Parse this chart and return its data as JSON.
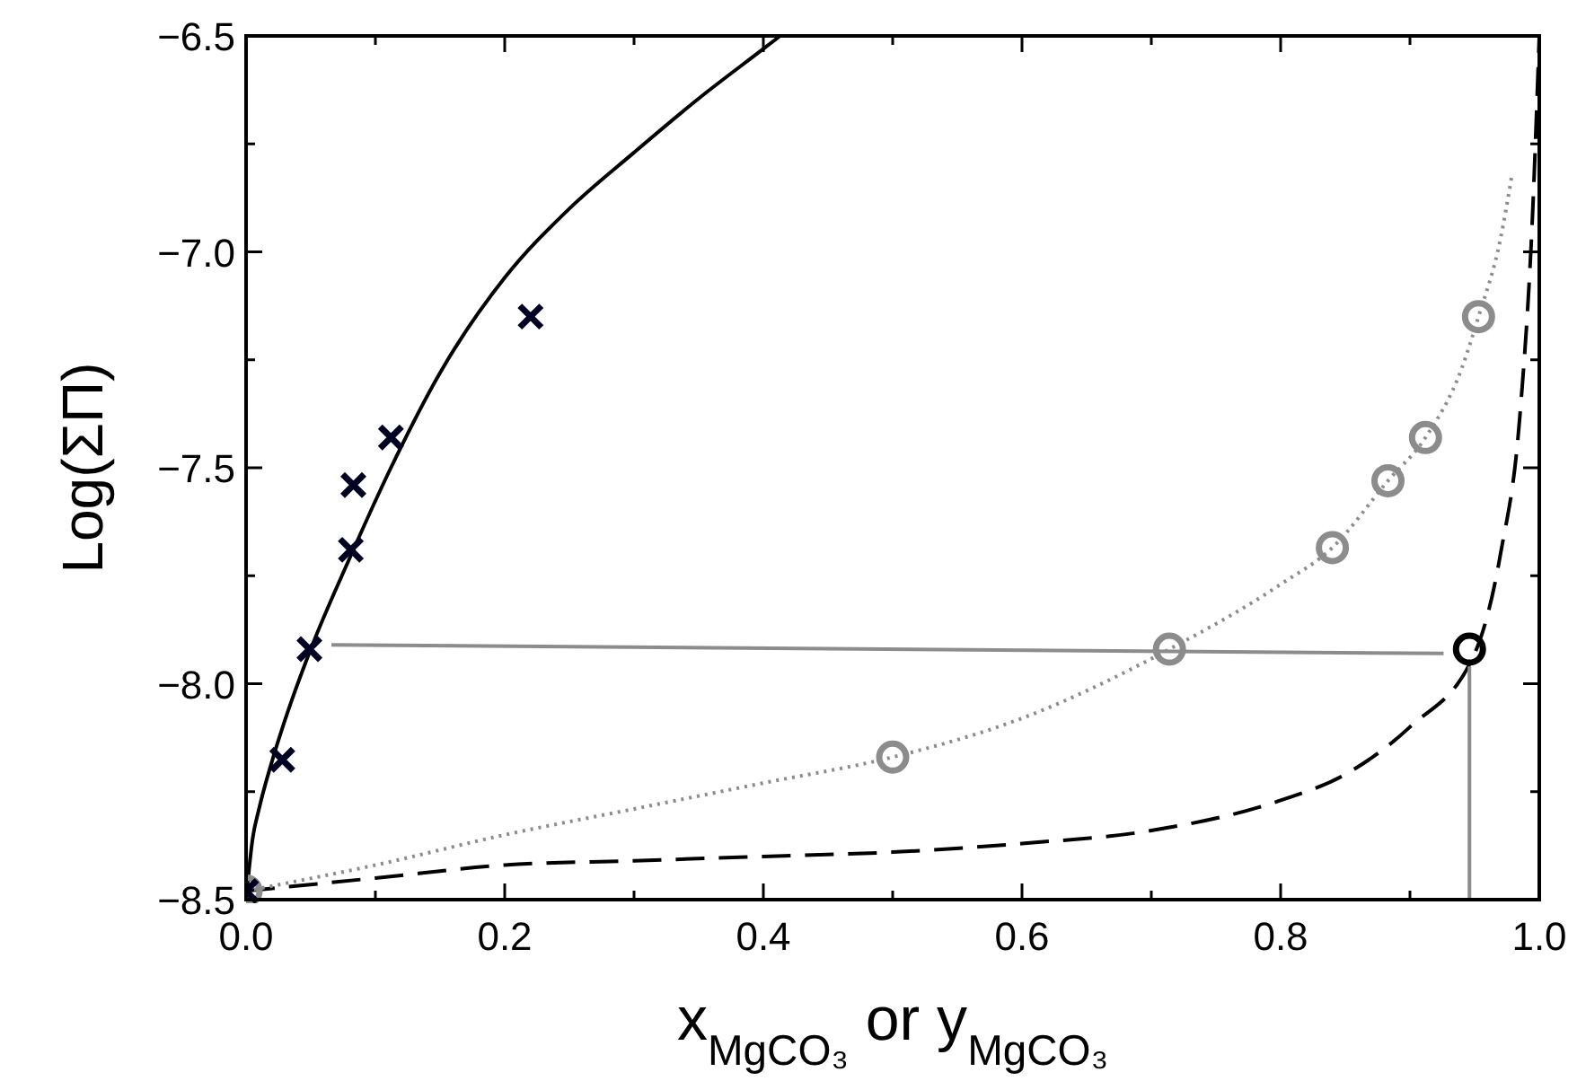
{
  "chart_data": {
    "type": "line",
    "xlabel": "x$_{MgCO₃}$ or y$_{MgCO₃}$",
    "ylabel": "Log(ΣΠ)",
    "xlim": [
      0,
      1
    ],
    "ylim": [
      -8.5,
      -6.5
    ],
    "xticks": [
      {
        "value": 0,
        "label": "0.0"
      },
      {
        "value": 0.1,
        "label": null
      },
      {
        "value": 0.2,
        "label": "0.2"
      },
      {
        "value": 0.3,
        "label": null
      },
      {
        "value": 0.4,
        "label": "0.4"
      },
      {
        "value": 0.5,
        "label": null
      },
      {
        "value": 0.6,
        "label": "0.6"
      },
      {
        "value": 0.7,
        "label": null
      },
      {
        "value": 0.8,
        "label": "0.8"
      },
      {
        "value": 0.9,
        "label": null
      },
      {
        "value": 1,
        "label": "1.0"
      }
    ],
    "yticks": [
      {
        "value": -8.5,
        "label": "−8.5"
      },
      {
        "value": -8.25,
        "label": null
      },
      {
        "value": -8,
        "label": "−8.0"
      },
      {
        "value": -7.75,
        "label": null
      },
      {
        "value": -7.5,
        "label": "−7.5"
      },
      {
        "value": -7.25,
        "label": null
      },
      {
        "value": -7,
        "label": "−7.0"
      },
      {
        "value": -6.75,
        "label": null
      },
      {
        "value": -6.5,
        "label": "−6.5"
      }
    ],
    "grid": false,
    "series": [
      {
        "color": "#000000",
        "line_style": "solid",
        "marker": "none",
        "x": [
          0,
          0.005,
          0.01,
          0.02,
          0.03,
          0.05,
          0.08,
          0.112,
          0.15,
          0.2,
          0.25,
          0.3,
          0.35,
          0.4,
          0.413
        ],
        "values": [
          -8.5,
          -8.36,
          -8.29,
          -8.18,
          -8.085,
          -7.92,
          -7.71,
          -7.5,
          -7.28,
          -7.06,
          -6.9,
          -6.77,
          -6.645,
          -6.53,
          -6.5
        ]
      },
      {
        "type": "line",
        "color": "#000000",
        "line_style": "dashed",
        "marker": "none",
        "x": [
          0,
          0.1,
          0.2,
          0.3,
          0.4,
          0.5,
          0.6,
          0.7,
          0.8,
          0.85,
          0.9,
          0.95,
          0.97,
          0.985,
          0.995,
          1
        ],
        "values": [
          -8.48,
          -8.45,
          -8.42,
          -8.41,
          -8.4,
          -8.39,
          -8.37,
          -8.34,
          -8.27,
          -8.21,
          -8.1,
          -7.93,
          -7.7,
          -7.38,
          -6.9,
          -6.5
        ]
      },
      {
        "type": "line",
        "color": "#8c8c8c",
        "line_style": "dotted",
        "marker": "none",
        "x": [
          0,
          0.1,
          0.2,
          0.3,
          0.4,
          0.5,
          0.6,
          0.714,
          0.8,
          0.84,
          0.883,
          0.912,
          0.94,
          0.953,
          0.97,
          0.979
        ],
        "values": [
          -8.48,
          -8.42,
          -8.35,
          -8.29,
          -8.23,
          -8.17,
          -8.08,
          -7.92,
          -7.77,
          -7.685,
          -7.53,
          -7.43,
          -7.27,
          -7.15,
          -6.97,
          -6.82
        ]
      },
      {
        "type": "line",
        "color": "#8c8c8c",
        "line_style": "solid",
        "marker": "none",
        "x": [
          0.066,
          0.926
        ],
        "values": [
          -7.91,
          -7.93
        ]
      },
      {
        "type": "line",
        "color": "#8c8c8c",
        "line_style": "solid",
        "marker": "none",
        "x": [
          0.946,
          0.946
        ],
        "values": [
          -7.96,
          -8.5
        ]
      },
      {
        "type": "scatter",
        "color": "#8c8c8c",
        "marker": "circle",
        "x": [
          0,
          0.5,
          0.714,
          0.84,
          0.883,
          0.912,
          0.953
        ],
        "values": [
          -8.48,
          -8.17,
          -7.92,
          -7.685,
          -7.53,
          -7.43,
          -7.15
        ]
      },
      {
        "type": "scatter",
        "color": "#000000",
        "marker": "circle",
        "x": [
          0.946
        ],
        "values": [
          -7.92
        ]
      },
      {
        "type": "scatter",
        "color": "#000022",
        "marker": "cross",
        "x": [
          0,
          0.028,
          0.049,
          0.081,
          0.083,
          0.112,
          0.22
        ],
        "values": [
          -8.48,
          -8.176,
          -7.92,
          -7.69,
          -7.54,
          -7.43,
          -7.15
        ]
      }
    ]
  }
}
